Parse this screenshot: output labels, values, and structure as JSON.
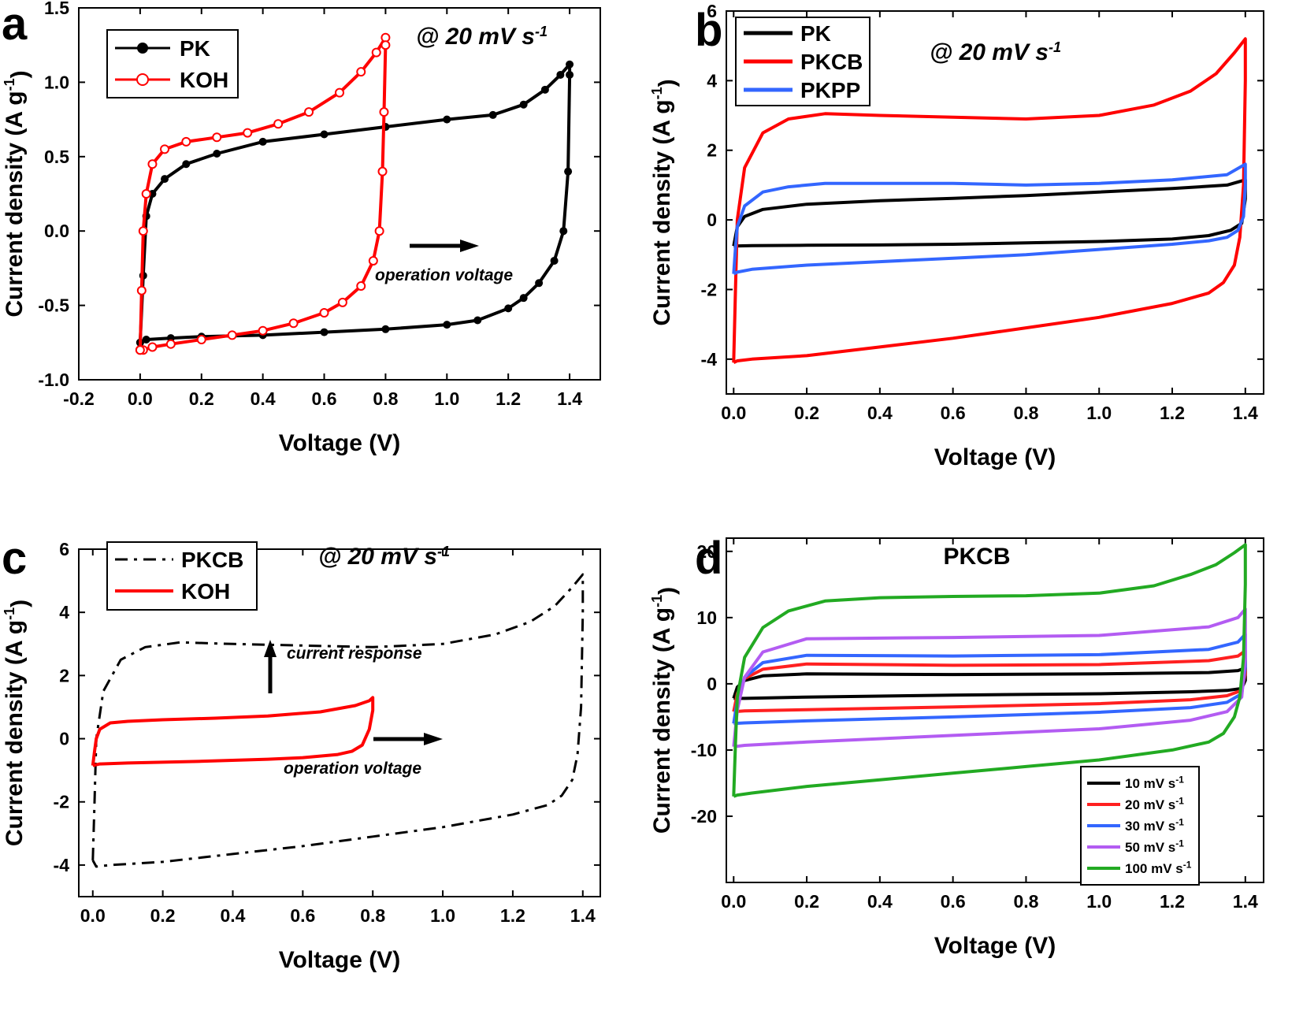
{
  "figure": {
    "panels": [
      {
        "letter": "a",
        "rate_label": "@ 20 mV s",
        "rate_sup": "-1",
        "xlabel": "Voltage (V)",
        "ylabel": "Current density (A g",
        "ylabel_sup": "-1",
        "ylabel_tail": ")",
        "annotations": [
          "operation voltage"
        ],
        "legend": [
          "PK",
          "KOH"
        ]
      },
      {
        "letter": "b",
        "rate_label": "@ 20 mV s",
        "rate_sup": "-1",
        "xlabel": "Voltage (V)",
        "ylabel": "Current density (A g",
        "ylabel_sup": "-1",
        "ylabel_tail": ")",
        "legend": [
          "PK",
          "PKCB",
          "PKPP"
        ]
      },
      {
        "letter": "c",
        "rate_label": "@ 20 mV s",
        "rate_sup": "-1",
        "xlabel": "Voltage (V)",
        "ylabel": "Current density (A g",
        "ylabel_sup": "-1",
        "ylabel_tail": ")",
        "annotations": [
          "current response",
          "operation voltage"
        ],
        "legend": [
          "PKCB",
          "KOH"
        ]
      },
      {
        "letter": "d",
        "inner_title": "PKCB",
        "xlabel": "Voltage (V)",
        "ylabel": "Current density (A g",
        "ylabel_sup": "-1",
        "ylabel_tail": ")",
        "legend": [
          "10 mV s",
          "20 mV s",
          "30 mV s",
          "50 mV s",
          "100 mV s"
        ],
        "legend_sup": "-1"
      }
    ]
  },
  "chart_data": [
    {
      "type": "line",
      "panel": "a",
      "xlim": [
        -0.2,
        1.5
      ],
      "ylim": [
        -1.0,
        1.5
      ],
      "xticks": [
        "-0.2",
        "0.0",
        "0.2",
        "0.4",
        "0.6",
        "0.8",
        "1.0",
        "1.2",
        "1.4"
      ],
      "yticks": [
        "-1.0",
        "-0.5",
        "0.0",
        "0.5",
        "1.0",
        "1.5"
      ],
      "xlabel": "Voltage (V)",
      "ylabel": "Current density (A g-1)",
      "legend_position": "top-left",
      "series": [
        {
          "name": "PK",
          "color": "#000000",
          "marker": "circle",
          "x": [
            0.0,
            0.01,
            0.02,
            0.04,
            0.08,
            0.15,
            0.25,
            0.4,
            0.6,
            0.8,
            1.0,
            1.15,
            1.25,
            1.32,
            1.37,
            1.4,
            1.4,
            1.395,
            1.38,
            1.35,
            1.3,
            1.25,
            1.2,
            1.1,
            1.0,
            0.8,
            0.6,
            0.4,
            0.2,
            0.1,
            0.02,
            0.0
          ],
          "y": [
            -0.75,
            -0.3,
            0.1,
            0.25,
            0.35,
            0.45,
            0.52,
            0.6,
            0.65,
            0.7,
            0.75,
            0.78,
            0.85,
            0.95,
            1.05,
            1.12,
            1.05,
            0.4,
            0.0,
            -0.2,
            -0.35,
            -0.45,
            -0.52,
            -0.6,
            -0.63,
            -0.66,
            -0.68,
            -0.7,
            -0.71,
            -0.72,
            -0.73,
            -0.75
          ]
        },
        {
          "name": "KOH",
          "color": "#ff0000",
          "marker": "star",
          "x": [
            0.0,
            0.005,
            0.01,
            0.02,
            0.04,
            0.08,
            0.15,
            0.25,
            0.35,
            0.45,
            0.55,
            0.65,
            0.72,
            0.77,
            0.8,
            0.8,
            0.795,
            0.79,
            0.78,
            0.76,
            0.72,
            0.66,
            0.6,
            0.5,
            0.4,
            0.3,
            0.2,
            0.1,
            0.04,
            0.01,
            0.0
          ],
          "y": [
            -0.8,
            -0.4,
            0.0,
            0.25,
            0.45,
            0.55,
            0.6,
            0.63,
            0.66,
            0.72,
            0.8,
            0.93,
            1.07,
            1.2,
            1.3,
            1.25,
            0.8,
            0.4,
            0.0,
            -0.2,
            -0.37,
            -0.48,
            -0.55,
            -0.62,
            -0.67,
            -0.7,
            -0.73,
            -0.76,
            -0.78,
            -0.8,
            -0.8
          ]
        }
      ]
    },
    {
      "type": "line",
      "panel": "b",
      "xlim": [
        -0.02,
        1.45
      ],
      "ylim": [
        -5,
        6
      ],
      "xticks": [
        "0.0",
        "0.2",
        "0.4",
        "0.6",
        "0.8",
        "1.0",
        "1.2",
        "1.4"
      ],
      "yticks": [
        "-4",
        "-2",
        "0",
        "2",
        "4",
        "6"
      ],
      "xlabel": "Voltage (V)",
      "ylabel": "Current density (A g-1)",
      "legend_position": "top-left",
      "series": [
        {
          "name": "PK",
          "color": "#000000",
          "x": [
            0.0,
            0.01,
            0.03,
            0.08,
            0.2,
            0.4,
            0.6,
            0.8,
            1.0,
            1.2,
            1.35,
            1.4,
            1.4,
            1.39,
            1.36,
            1.3,
            1.2,
            1.0,
            0.8,
            0.6,
            0.4,
            0.2,
            0.05,
            0.0
          ],
          "y": [
            -0.75,
            -0.2,
            0.1,
            0.3,
            0.45,
            0.55,
            0.62,
            0.7,
            0.8,
            0.9,
            1.0,
            1.15,
            0.6,
            -0.1,
            -0.3,
            -0.45,
            -0.55,
            -0.62,
            -0.66,
            -0.7,
            -0.72,
            -0.73,
            -0.74,
            -0.75
          ]
        },
        {
          "name": "PKCB",
          "color": "#ff0000",
          "x": [
            0.0,
            0.005,
            0.01,
            0.03,
            0.08,
            0.15,
            0.25,
            0.4,
            0.6,
            0.8,
            1.0,
            1.15,
            1.25,
            1.32,
            1.37,
            1.4,
            1.4,
            1.395,
            1.385,
            1.37,
            1.34,
            1.3,
            1.2,
            1.0,
            0.8,
            0.6,
            0.4,
            0.2,
            0.05,
            0.01,
            0.0
          ],
          "y": [
            -4.1,
            -2.0,
            0.0,
            1.5,
            2.5,
            2.9,
            3.05,
            3.0,
            2.95,
            2.9,
            3.0,
            3.3,
            3.7,
            4.2,
            4.8,
            5.2,
            4.0,
            1.0,
            -0.5,
            -1.3,
            -1.8,
            -2.1,
            -2.4,
            -2.8,
            -3.1,
            -3.4,
            -3.65,
            -3.9,
            -4.0,
            -4.05,
            -4.1
          ]
        },
        {
          "name": "PKPP",
          "color": "#3366ff",
          "x": [
            0.0,
            0.005,
            0.01,
            0.03,
            0.08,
            0.15,
            0.25,
            0.4,
            0.6,
            0.8,
            1.0,
            1.2,
            1.35,
            1.4,
            1.4,
            1.395,
            1.38,
            1.35,
            1.3,
            1.2,
            1.0,
            0.8,
            0.6,
            0.4,
            0.2,
            0.05,
            0.01,
            0.0
          ],
          "y": [
            -1.55,
            -0.8,
            -0.2,
            0.4,
            0.8,
            0.95,
            1.05,
            1.05,
            1.05,
            1.0,
            1.05,
            1.15,
            1.3,
            1.6,
            1.0,
            0.1,
            -0.3,
            -0.5,
            -0.6,
            -0.7,
            -0.85,
            -1.0,
            -1.1,
            -1.2,
            -1.3,
            -1.42,
            -1.5,
            -1.55
          ]
        }
      ]
    },
    {
      "type": "line",
      "panel": "c",
      "xlim": [
        -0.04,
        1.45
      ],
      "ylim": [
        -5,
        6
      ],
      "xticks": [
        "0.0",
        "0.2",
        "0.4",
        "0.6",
        "0.8",
        "1.0",
        "1.2",
        "1.4"
      ],
      "yticks": [
        "-4",
        "-2",
        "0",
        "2",
        "4",
        "6"
      ],
      "xlabel": "Voltage (V)",
      "ylabel": "Current density (A g-1)",
      "legend_position": "top-left",
      "series": [
        {
          "name": "PKCB",
          "color": "#000000",
          "dash": "dashdot",
          "x": [
            0.0,
            0.005,
            0.01,
            0.03,
            0.08,
            0.15,
            0.25,
            0.4,
            0.6,
            0.8,
            1.0,
            1.15,
            1.25,
            1.32,
            1.37,
            1.4,
            1.4,
            1.395,
            1.385,
            1.37,
            1.34,
            1.3,
            1.2,
            1.0,
            0.8,
            0.6,
            0.4,
            0.2,
            0.05,
            0.01,
            0.0
          ],
          "y": [
            -3.85,
            -2.0,
            0.0,
            1.5,
            2.5,
            2.9,
            3.05,
            3.0,
            2.95,
            2.9,
            3.0,
            3.3,
            3.7,
            4.2,
            4.8,
            5.2,
            4.0,
            1.0,
            -0.5,
            -1.3,
            -1.8,
            -2.1,
            -2.4,
            -2.8,
            -3.1,
            -3.4,
            -3.65,
            -3.9,
            -4.0,
            -4.05,
            -3.85
          ]
        },
        {
          "name": "KOH",
          "color": "#ff0000",
          "x": [
            0.0,
            0.005,
            0.01,
            0.02,
            0.05,
            0.1,
            0.2,
            0.35,
            0.5,
            0.65,
            0.75,
            0.79,
            0.8,
            0.8,
            0.79,
            0.77,
            0.74,
            0.7,
            0.6,
            0.5,
            0.3,
            0.1,
            0.02,
            0.0
          ],
          "y": [
            -0.85,
            -0.4,
            0.0,
            0.3,
            0.5,
            0.55,
            0.6,
            0.65,
            0.72,
            0.85,
            1.05,
            1.2,
            1.3,
            0.9,
            0.3,
            -0.2,
            -0.4,
            -0.5,
            -0.6,
            -0.65,
            -0.72,
            -0.77,
            -0.8,
            -0.85
          ]
        }
      ]
    },
    {
      "type": "line",
      "panel": "d",
      "xlim": [
        -0.02,
        1.45
      ],
      "ylim": [
        -30,
        22
      ],
      "xticks": [
        "0.0",
        "0.2",
        "0.4",
        "0.6",
        "0.8",
        "1.0",
        "1.2",
        "1.4"
      ],
      "yticks": [
        "-20",
        "-10",
        "0",
        "10",
        "20"
      ],
      "title": "PKCB",
      "xlabel": "Voltage (V)",
      "ylabel": "Current density (A g-1)",
      "legend_position": "bottom-right",
      "series": [
        {
          "name": "10 mV s-1",
          "color": "#000000",
          "x": [
            0.0,
            0.01,
            0.03,
            0.08,
            0.2,
            0.6,
            1.0,
            1.3,
            1.38,
            1.4,
            1.4,
            1.39,
            1.35,
            1.25,
            1.0,
            0.6,
            0.2,
            0.03,
            0.0
          ],
          "y": [
            -2.2,
            -0.5,
            0.5,
            1.2,
            1.5,
            1.4,
            1.5,
            1.7,
            2.0,
            2.4,
            0.5,
            -0.7,
            -1.0,
            -1.2,
            -1.5,
            -1.7,
            -2.0,
            -2.2,
            -2.2
          ]
        },
        {
          "name": "20 mV s-1",
          "color": "#ff2020",
          "x": [
            0.0,
            0.01,
            0.03,
            0.08,
            0.2,
            0.6,
            1.0,
            1.3,
            1.38,
            1.4,
            1.4,
            1.39,
            1.35,
            1.25,
            1.0,
            0.6,
            0.2,
            0.03,
            0.0
          ],
          "y": [
            -4.2,
            -1.5,
            0.8,
            2.2,
            3.0,
            2.8,
            2.9,
            3.5,
            4.2,
            5.0,
            1.5,
            -1.0,
            -1.8,
            -2.4,
            -3.0,
            -3.5,
            -3.9,
            -4.1,
            -4.2
          ]
        },
        {
          "name": "30 mV s-1",
          "color": "#3366ff",
          "x": [
            0.0,
            0.01,
            0.03,
            0.08,
            0.2,
            0.6,
            1.0,
            1.3,
            1.38,
            1.4,
            1.4,
            1.39,
            1.35,
            1.25,
            1.0,
            0.6,
            0.2,
            0.03,
            0.0
          ],
          "y": [
            -6.0,
            -2.5,
            1.0,
            3.2,
            4.3,
            4.2,
            4.4,
            5.2,
            6.3,
            7.5,
            2.5,
            -1.5,
            -2.8,
            -3.6,
            -4.3,
            -5.0,
            -5.6,
            -5.9,
            -6.0
          ]
        },
        {
          "name": "50 mV s-1",
          "color": "#b35cf2",
          "x": [
            0.0,
            0.01,
            0.03,
            0.08,
            0.2,
            0.6,
            1.0,
            1.3,
            1.38,
            1.4,
            1.4,
            1.39,
            1.35,
            1.25,
            1.0,
            0.6,
            0.2,
            0.03,
            0.0
          ],
          "y": [
            -9.5,
            -4.0,
            1.0,
            4.8,
            6.8,
            7.0,
            7.3,
            8.6,
            10.0,
            11.3,
            4.0,
            -2.0,
            -4.2,
            -5.5,
            -6.8,
            -7.8,
            -8.8,
            -9.3,
            -9.5
          ]
        },
        {
          "name": "100 mV s-1",
          "color": "#22aa22",
          "x": [
            0.0,
            0.005,
            0.01,
            0.03,
            0.08,
            0.15,
            0.25,
            0.4,
            0.6,
            0.8,
            1.0,
            1.15,
            1.25,
            1.32,
            1.37,
            1.4,
            1.4,
            1.395,
            1.385,
            1.37,
            1.34,
            1.3,
            1.2,
            1.0,
            0.8,
            0.6,
            0.4,
            0.2,
            0.05,
            0.01,
            0.0
          ],
          "y": [
            -17.0,
            -9.0,
            -2.0,
            4.0,
            8.5,
            11.0,
            12.5,
            13.0,
            13.2,
            13.3,
            13.7,
            14.8,
            16.5,
            18.0,
            19.8,
            21.0,
            15.0,
            4.0,
            -2.0,
            -5.0,
            -7.5,
            -8.8,
            -10.0,
            -11.5,
            -12.5,
            -13.5,
            -14.5,
            -15.5,
            -16.5,
            -16.8,
            -17.0
          ]
        }
      ]
    }
  ]
}
